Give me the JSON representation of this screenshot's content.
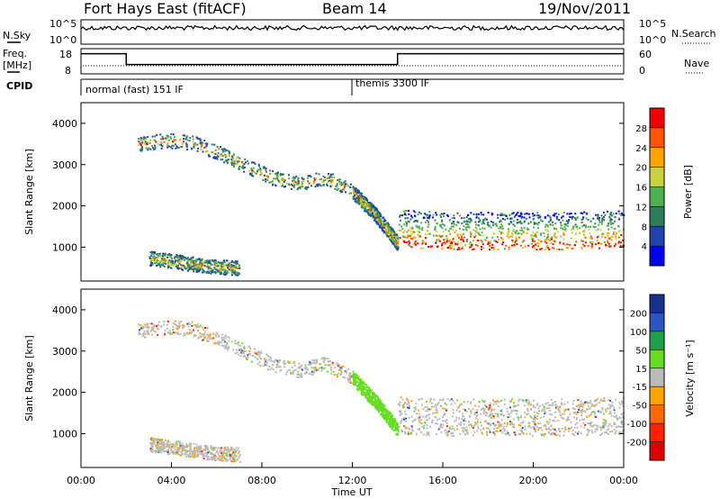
{
  "header": {
    "station": "Fort Hays East (fitACF)",
    "beam": "Beam 14",
    "date": "19/Nov/2011"
  },
  "summary_panels": {
    "nsky_label": "N.Sky",
    "nsky_ticks": [
      "10^5",
      "10^0"
    ],
    "nsearch_label": "N.Search",
    "nsearch_ticks": [
      "10^5",
      "10^0"
    ],
    "freq_label": "Freq.",
    "freq_unit": "[MHz]",
    "freq_ticks": [
      "18",
      "8"
    ],
    "nave_label": "Nave",
    "nave_ticks": [
      "60",
      "0"
    ],
    "cpid_label": "CPID",
    "cpid_modes": [
      {
        "label": "normal (fast) 151 IF",
        "start_hour": 0,
        "end_hour": 12
      },
      {
        "label": "themis 3300 IF",
        "start_hour": 12,
        "end_hour": 24
      }
    ],
    "freq_steps": [
      {
        "start_hour": 0,
        "end_hour": 2,
        "value_mhz": 16.5
      },
      {
        "start_hour": 2,
        "end_hour": 14,
        "value_mhz": 11.5
      },
      {
        "start_hour": 14,
        "end_hour": 24,
        "value_mhz": 16.5
      }
    ]
  },
  "chart_data": [
    {
      "type": "heatmap",
      "name": "power",
      "ylabel": "Slant Range [km]",
      "ylim": [
        180,
        4500
      ],
      "yticks": [
        "1000",
        "2000",
        "3000",
        "4000"
      ],
      "xlim_hours": [
        0,
        24
      ],
      "colorbar_label": "Power [dB]",
      "colorbar_ticks": [
        "4",
        "8",
        "12",
        "16",
        "20",
        "24",
        "28"
      ],
      "colorbar_colors": [
        "#0000ee",
        "#2244aa",
        "#2e7d5a",
        "#4caf50",
        "#c8d23c",
        "#ffa500",
        "#ff5500",
        "#ee0000"
      ],
      "features": [
        {
          "desc": "high arc",
          "from_hour": 2.5,
          "to_hour": 12.0,
          "range_km": [
            3500,
            3600,
            3550,
            3300,
            3000,
            2700,
            2550,
            2700,
            2350
          ]
        },
        {
          "desc": "descending band",
          "from_hour": 12.0,
          "to_hour": 14.0,
          "range_km": [
            2350,
            1800,
            1100
          ]
        },
        {
          "desc": "lower band",
          "from_hour": 14.0,
          "to_hour": 24.0,
          "range_km": [
            1100,
            1050,
            1050,
            1050,
            1100
          ]
        },
        {
          "desc": "near range band",
          "from_hour": 3.0,
          "to_hour": 7.0,
          "range_km": [
            750,
            650,
            550,
            500
          ]
        }
      ]
    },
    {
      "type": "heatmap",
      "name": "velocity",
      "xlabel": "Time UT",
      "ylabel": "Slant Range [km]",
      "ylim": [
        180,
        4500
      ],
      "yticks": [
        "1000",
        "2000",
        "3000",
        "4000"
      ],
      "xlim_hours": [
        0,
        24
      ],
      "xticks": [
        "00:00",
        "04:00",
        "08:00",
        "12:00",
        "16:00",
        "20:00",
        "00:00"
      ],
      "colorbar_label": "Velocity [m s⁻¹]",
      "colorbar_ticks": [
        "200",
        "100",
        "50",
        "15",
        "-15",
        "-50",
        "-100",
        "-200"
      ],
      "colorbar_colors": [
        "#1a2e8c",
        "#2b55c0",
        "#21a04a",
        "#66dd22",
        "#bbbbbb",
        "#ffa500",
        "#ff6a00",
        "#ff2200",
        "#dd0000"
      ]
    }
  ]
}
